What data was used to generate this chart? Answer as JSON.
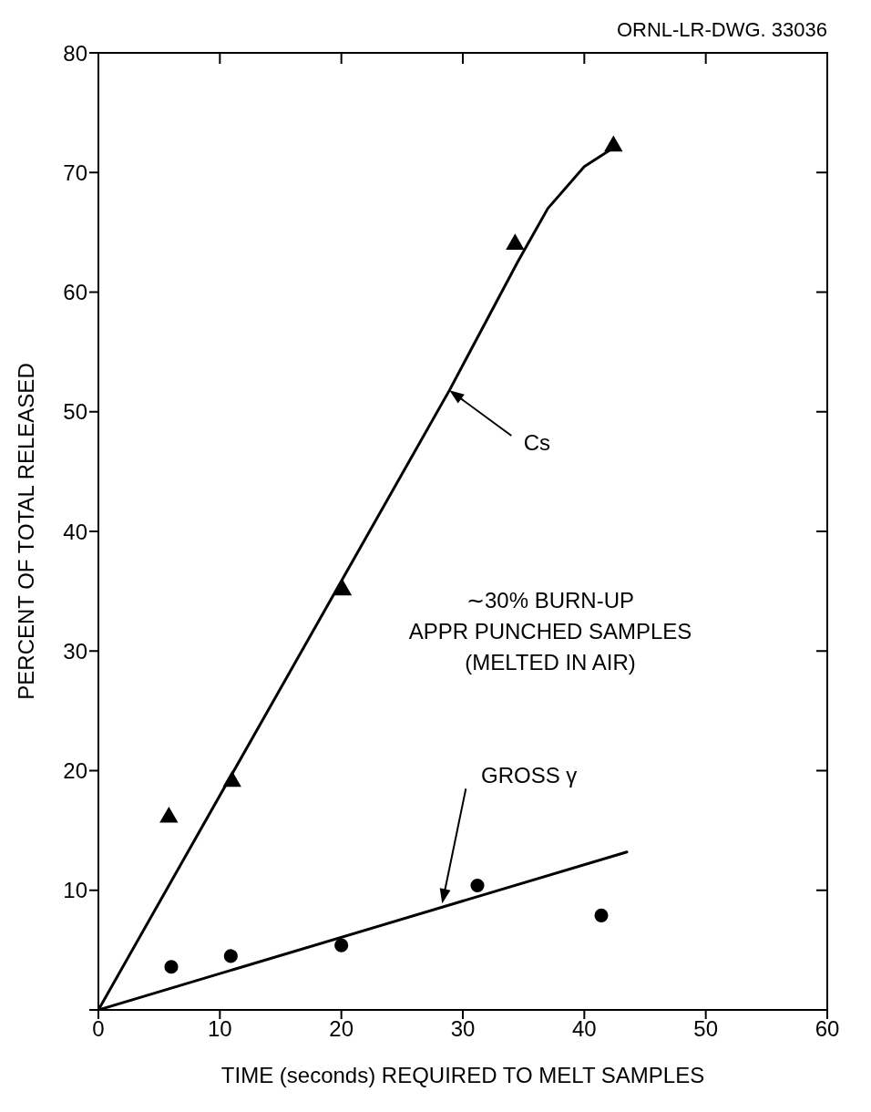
{
  "chart_data": {
    "type": "scatter",
    "xlabel": "TIME (seconds) REQUIRED TO MELT SAMPLES",
    "ylabel": "PERCENT OF TOTAL RELEASED",
    "xlim": [
      0,
      60
    ],
    "ylim": [
      0,
      80
    ],
    "xticks": [
      0,
      10,
      20,
      30,
      40,
      50,
      60
    ],
    "yticks": [
      {
        "value": 0,
        "label": null
      },
      10,
      20,
      30,
      40,
      50,
      60,
      70,
      80
    ],
    "grid": false,
    "series": [
      {
        "marker": "triangle",
        "color": "#000000",
        "x": [
          5.8,
          11.0,
          20.1,
          34.3,
          42.4
        ],
        "values": [
          16.1,
          19.1,
          35.1,
          64.0,
          72.2
        ]
      },
      {
        "marker": "circle",
        "color": "#000000",
        "x": [
          6.0,
          10.9,
          20.0,
          31.2,
          41.4
        ],
        "values": [
          3.6,
          4.5,
          5.4,
          10.4,
          7.9
        ]
      },
      {
        "type": "line",
        "marker": "none",
        "color": "#000000",
        "x": [
          0,
          28.9,
          34.5,
          37,
          40,
          42.3
        ],
        "values": [
          0,
          51.8,
          62.5,
          67,
          70.5,
          72
        ]
      },
      {
        "type": "line",
        "marker": "none",
        "color": "#000000",
        "x": [
          0,
          43.5
        ],
        "values": [
          0,
          13.2
        ]
      }
    ],
    "annotations": [
      "ORNL-LR-DWG. 33036",
      "∼30% BURN-UP",
      "APPR PUNCHED SAMPLES",
      "(MELTED IN AIR)",
      "Cs",
      "GROSS γ"
    ]
  }
}
